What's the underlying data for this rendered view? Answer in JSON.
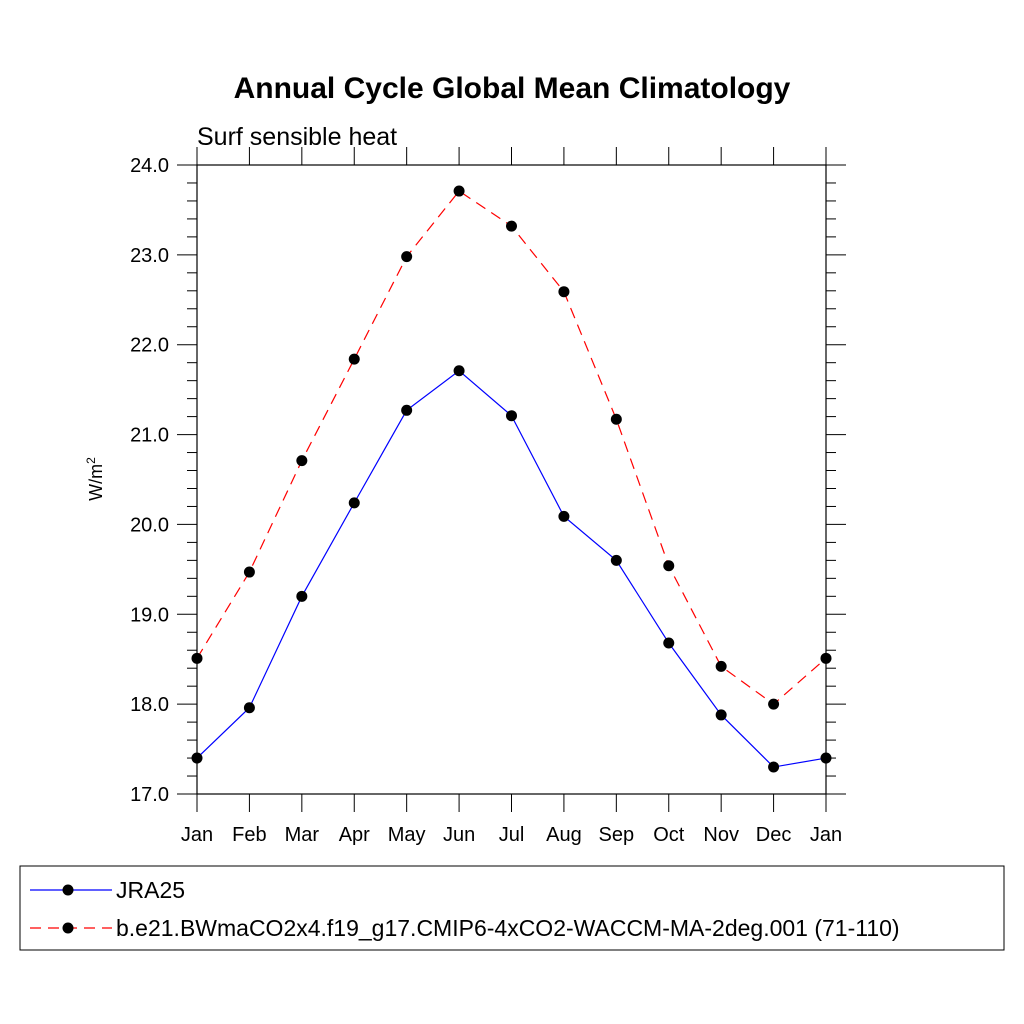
{
  "chart_data": {
    "type": "line",
    "title": "Annual Cycle Global Mean Climatology",
    "subtitle": "Surf sensible heat",
    "ylabel_base": "W/m",
    "ylabel_sup": "2",
    "xlabel": "",
    "categories": [
      "Jan",
      "Feb",
      "Mar",
      "Apr",
      "May",
      "Jun",
      "Jul",
      "Aug",
      "Sep",
      "Oct",
      "Nov",
      "Dec",
      "Jan"
    ],
    "ylim": [
      17.0,
      24.0
    ],
    "yticks": [
      "17.0",
      "18.0",
      "19.0",
      "20.0",
      "21.0",
      "22.0",
      "23.0",
      "24.0"
    ],
    "grid": false,
    "legend_position": "bottom",
    "series": [
      {
        "name": "JRA25",
        "color": "#0000ff",
        "dash": "solid",
        "values": [
          17.4,
          17.96,
          19.2,
          20.24,
          21.27,
          21.71,
          21.21,
          20.09,
          19.6,
          18.68,
          17.88,
          17.3,
          17.4
        ]
      },
      {
        "name": "b.e21.BWmaCO2x4.f19_g17.CMIP6-4xCO2-WACCM-MA-2deg.001 (71-110)",
        "color": "#ff0000",
        "dash": "dashed",
        "values": [
          18.51,
          19.47,
          20.71,
          21.84,
          22.98,
          23.71,
          23.32,
          22.59,
          21.17,
          19.54,
          18.42,
          18.0,
          18.51
        ]
      }
    ]
  }
}
